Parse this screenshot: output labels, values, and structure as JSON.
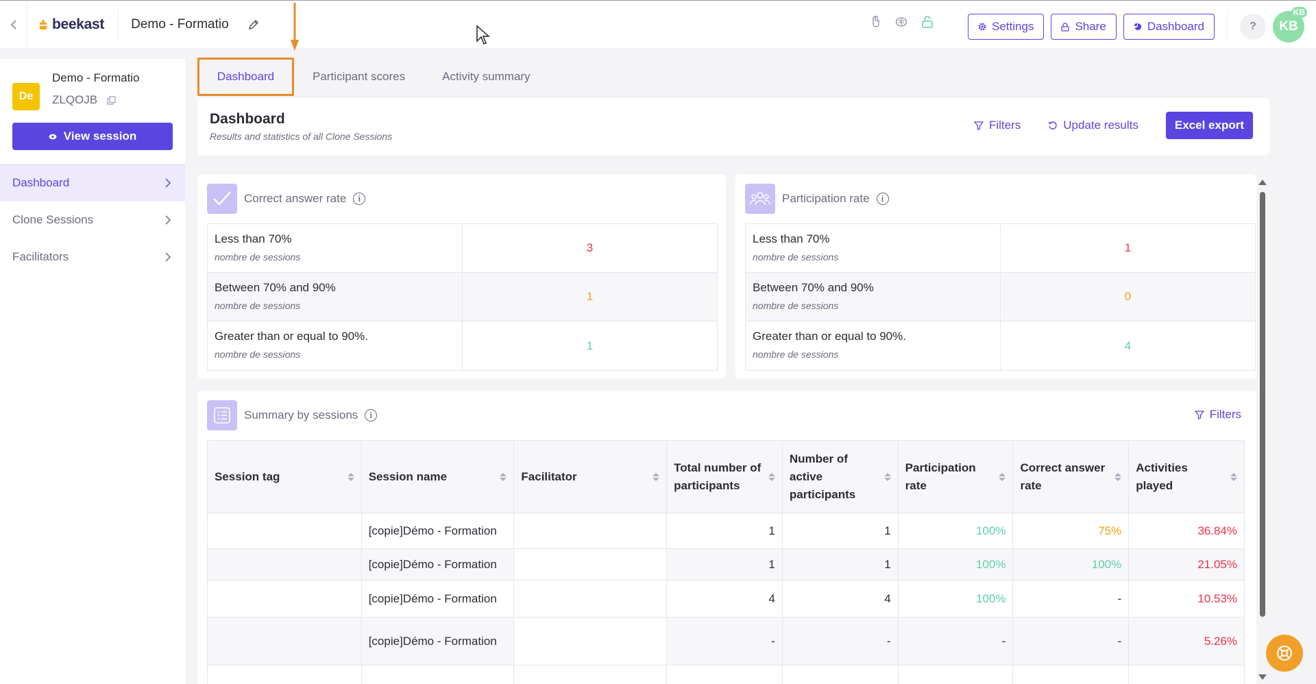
{
  "topbar": {
    "back_icon": "chevron-left-icon",
    "logo_text": "beekast",
    "doc_title": "Demo - Formatio",
    "buttons": {
      "settings": "Settings",
      "share": "Share",
      "dashboard": "Dashboard"
    },
    "help": "?",
    "avatar_initials": "KB",
    "avatar_badge": "KB"
  },
  "sidebar": {
    "session_badge": "De",
    "session_name": "Demo - Formatio",
    "session_code": "ZLQOJB",
    "view_button": "View session",
    "items": [
      {
        "label": "Dashboard",
        "active": true
      },
      {
        "label": "Clone Sessions",
        "active": false
      },
      {
        "label": "Facilitators",
        "active": false
      }
    ]
  },
  "tabs": [
    {
      "label": "Dashboard",
      "active": true
    },
    {
      "label": "Participant scores",
      "active": false
    },
    {
      "label": "Activity summary",
      "active": false
    }
  ],
  "header": {
    "title": "Dashboard",
    "subtitle": "Results and statistics of all Clone Sessions",
    "filters": "Filters",
    "update": "Update results",
    "export": "Excel export"
  },
  "correct_rate": {
    "title": "Correct answer rate",
    "rows": [
      {
        "label": "Less than 70%",
        "sub": "nombre de sessions",
        "value": "3"
      },
      {
        "label": "Between 70% and 90%",
        "sub": "nombre de sessions",
        "value": "1"
      },
      {
        "label": "Greater than or equal to 90%.",
        "sub": "nombre de sessions",
        "value": "1"
      }
    ]
  },
  "participation_rate": {
    "title": "Participation rate",
    "rows": [
      {
        "label": "Less than 70%",
        "sub": "nombre de sessions",
        "value": "1"
      },
      {
        "label": "Between 70% and 90%",
        "sub": "nombre de sessions",
        "value": "0"
      },
      {
        "label": "Greater than or equal to 90%.",
        "sub": "nombre de sessions",
        "value": "4"
      }
    ]
  },
  "summary": {
    "title": "Summary by sessions",
    "filters": "Filters",
    "columns": {
      "c1": "Session tag",
      "c2": "Session name",
      "c3": "Facilitator",
      "c4": "Total number of participants",
      "c5": "Number of active participants",
      "c6": "Participation rate",
      "c7": "Correct answer rate",
      "c8": "Activities played"
    },
    "rows": [
      {
        "tag": "",
        "name": "[copie]Démo - Formation",
        "facilitator": "",
        "total": "1",
        "active": "1",
        "participation": "100%",
        "correct": "75%",
        "activities": "36.84%"
      },
      {
        "tag": "",
        "name": "[copie]Démo - Formation",
        "facilitator": "",
        "total": "1",
        "active": "1",
        "participation": "100%",
        "correct": "100%",
        "activities": "21.05%"
      },
      {
        "tag": "",
        "name": "[copie]Démo - Formation",
        "facilitator": "",
        "total": "4",
        "active": "4",
        "participation": "100%",
        "correct": "-",
        "activities": "10.53%"
      },
      {
        "tag": "",
        "name": "[copie]Démo - Formation",
        "facilitator": "",
        "total": "-",
        "active": "-",
        "participation": "-",
        "correct": "-",
        "activities": "5.26%"
      }
    ]
  },
  "colors": {
    "accent": "#5b45e0",
    "highlight": "#e88b2a",
    "red": "#e8334a",
    "orange": "#f2a011",
    "green": "#5dcfa4"
  }
}
